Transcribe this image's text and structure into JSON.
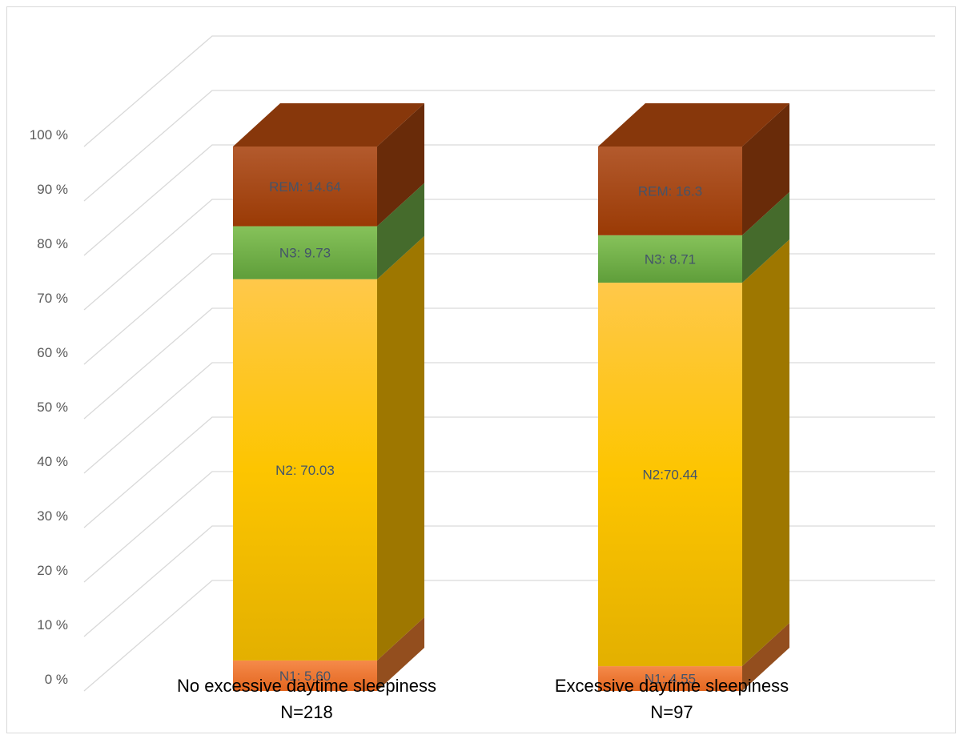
{
  "chart_data": {
    "type": "bar",
    "stacked": true,
    "percent_stacked": true,
    "three_d": true,
    "categories": [
      [
        "No excessive daytime sleepiness",
        "N=218"
      ],
      [
        "Excessive daytime sleepiness",
        "N=97"
      ]
    ],
    "series": [
      {
        "key": "N1",
        "values": [
          5.6,
          4.55
        ],
        "labels": [
          "N1: 5.60",
          "N1: 4.55"
        ],
        "color": "#ed7d31"
      },
      {
        "key": "N2",
        "values": [
          70.03,
          70.44
        ],
        "labels": [
          "N2: 70.03",
          "N2:70.44"
        ],
        "color": "#ffc000"
      },
      {
        "key": "N3",
        "values": [
          9.73,
          8.71
        ],
        "labels": [
          "N3: 9.73",
          "N3: 8.71"
        ],
        "color": "#70ad47"
      },
      {
        "key": "REM",
        "values": [
          14.64,
          16.3
        ],
        "labels": [
          "REM: 14.64",
          "REM: 16.3"
        ],
        "color": "#a9450e"
      }
    ],
    "y_ticks": [
      "0 %",
      "10 %",
      "20 %",
      "30 %",
      "40 %",
      "50 %",
      "60 %",
      "70 %",
      "80 %",
      "90 %",
      "100 %"
    ],
    "ylim": [
      0,
      100
    ],
    "grid": true,
    "legend": "none"
  }
}
